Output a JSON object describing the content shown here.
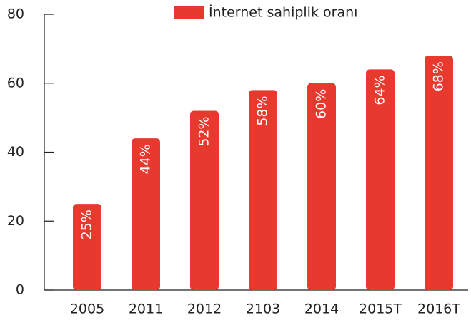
{
  "chart_data": {
    "type": "bar",
    "categories": [
      "2005",
      "2011",
      "2012",
      "2103",
      "2014",
      "2015T",
      "2016T"
    ],
    "series": [
      {
        "name": "İnternet sahiplik oranı",
        "color": "#e8392f",
        "values": [
          25,
          44,
          52,
          58,
          60,
          64,
          68
        ],
        "value_labels": [
          "25%",
          "44%",
          "52%",
          "58%",
          "60%",
          "64%",
          "68%"
        ]
      }
    ],
    "ylim": [
      0,
      80
    ],
    "yticks": [
      0,
      20,
      40,
      60,
      80
    ],
    "grid": false,
    "legend": "top"
  }
}
